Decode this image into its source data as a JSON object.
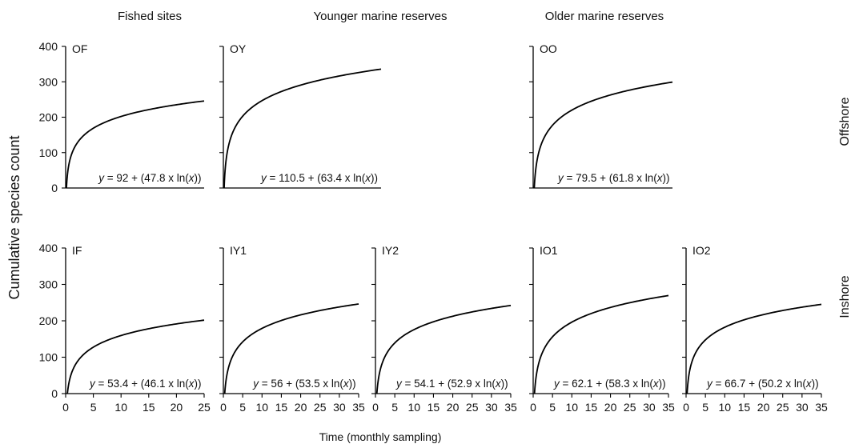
{
  "column_headers": [
    "Fished sites",
    "Younger marine reserves",
    "Older marine reserves"
  ],
  "row_labels": [
    "Offshore",
    "Inshore"
  ],
  "ylabel": "Cumulative species count",
  "xlabel": "Time (monthly sampling)",
  "chart_data": [
    {
      "type": "line",
      "panel": "OF",
      "model": "y = a + b*ln(x)",
      "a": 92,
      "b": 47.8,
      "x_max": 25,
      "equation": {
        "pre": "y",
        "mid": " = 92 + (47.8 x ln(",
        "var": "x",
        "post": "))"
      },
      "ylim": [
        0,
        400
      ],
      "y_ticks": [
        "0",
        "100",
        "200",
        "300",
        "400"
      ],
      "x_ticks": []
    },
    {
      "type": "line",
      "panel": "OY",
      "model": "y = a + b*ln(x)",
      "a": 110.5,
      "b": 63.4,
      "x_max": 35,
      "equation": {
        "pre": "y",
        "mid": " = 110.5 + (63.4 x ln(",
        "var": "x",
        "post": "))"
      },
      "ylim": [
        0,
        400
      ],
      "y_ticks": [],
      "x_ticks": []
    },
    {
      "type": "line",
      "panel": "OO",
      "model": "y = a + b*ln(x)",
      "a": 79.5,
      "b": 61.8,
      "x_max": 35,
      "equation": {
        "pre": "y",
        "mid": " = 79.5 + (61.8 x ln(",
        "var": "x",
        "post": "))"
      },
      "ylim": [
        0,
        400
      ],
      "y_ticks": [],
      "x_ticks": []
    },
    {
      "type": "line",
      "panel": "IF",
      "model": "y = a + b*ln(x)",
      "a": 53.4,
      "b": 46.1,
      "x_max": 25,
      "equation": {
        "pre": "y",
        "mid": " = 53.4 + (46.1 x ln(",
        "var": "x",
        "post": "))"
      },
      "ylim": [
        0,
        400
      ],
      "y_ticks": [
        "0",
        "100",
        "200",
        "300",
        "400"
      ],
      "x_ticks": [
        "0",
        "5",
        "10",
        "15",
        "20",
        "25"
      ]
    },
    {
      "type": "line",
      "panel": "IY1",
      "model": "y = a + b*ln(x)",
      "a": 56,
      "b": 53.5,
      "x_max": 35,
      "equation": {
        "pre": "y",
        "mid": " = 56 + (53.5 x ln(",
        "var": "x",
        "post": "))"
      },
      "ylim": [
        0,
        400
      ],
      "y_ticks": [],
      "x_ticks": [
        "0",
        "5",
        "10",
        "15",
        "20",
        "25",
        "30",
        "35"
      ]
    },
    {
      "type": "line",
      "panel": "IY2",
      "model": "y = a + b*ln(x)",
      "a": 54.1,
      "b": 52.9,
      "x_max": 35,
      "equation": {
        "pre": "y",
        "mid": " = 54.1 + (52.9 x ln(",
        "var": "x",
        "post": "))"
      },
      "ylim": [
        0,
        400
      ],
      "y_ticks": [],
      "x_ticks": [
        "0",
        "5",
        "10",
        "15",
        "20",
        "25",
        "30",
        "35"
      ]
    },
    {
      "type": "line",
      "panel": "IO1",
      "model": "y = a + b*ln(x)",
      "a": 62.1,
      "b": 58.3,
      "x_max": 35,
      "equation": {
        "pre": "y",
        "mid": " = 62.1 + (58.3 x ln(",
        "var": "x",
        "post": "))"
      },
      "ylim": [
        0,
        400
      ],
      "y_ticks": [],
      "x_ticks": [
        "0",
        "5",
        "10",
        "15",
        "20",
        "25",
        "30",
        "35"
      ]
    },
    {
      "type": "line",
      "panel": "IO2",
      "model": "y = a + b*ln(x)",
      "a": 66.7,
      "b": 50.2,
      "x_max": 35,
      "equation": {
        "pre": "y",
        "mid": " = 66.7 + (50.2 x ln(",
        "var": "x",
        "post": "))"
      },
      "ylim": [
        0,
        400
      ],
      "y_ticks": [],
      "x_ticks": [
        "0",
        "5",
        "10",
        "15",
        "20",
        "25",
        "30",
        "35"
      ]
    }
  ]
}
